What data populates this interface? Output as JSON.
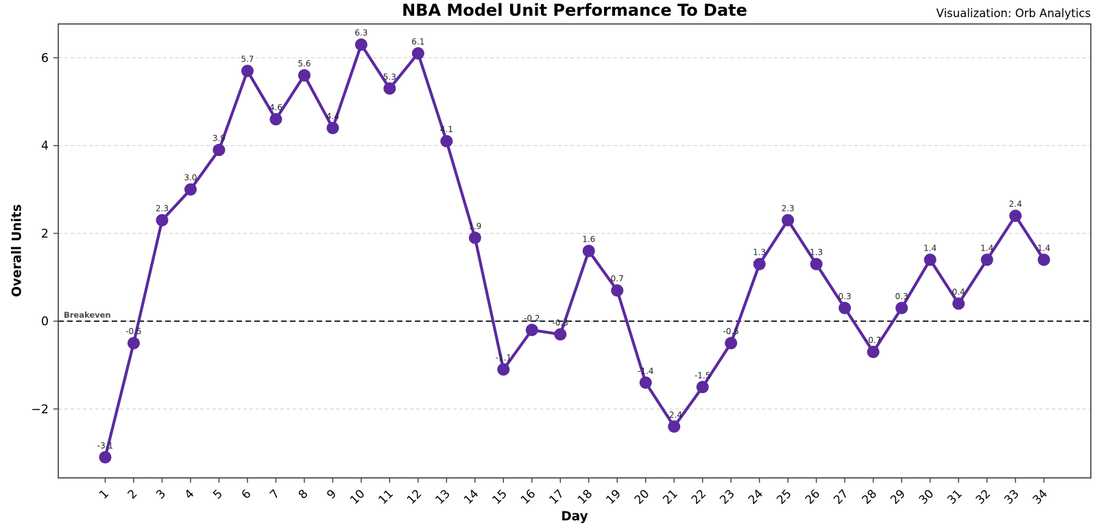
{
  "chart_data": {
    "type": "line",
    "title": "NBA Model Unit Performance To Date",
    "credit": "Visualization: Orb Analytics",
    "xlabel": "Day",
    "ylabel": "Overall Units",
    "x": [
      1,
      2,
      3,
      4,
      5,
      6,
      7,
      8,
      9,
      10,
      11,
      12,
      13,
      14,
      15,
      16,
      17,
      18,
      19,
      20,
      21,
      22,
      23,
      24,
      25,
      26,
      27,
      28,
      29,
      30,
      31,
      32,
      33,
      34
    ],
    "values": [
      -3.1,
      -0.5,
      2.3,
      3.0,
      3.9,
      5.7,
      4.6,
      5.6,
      4.4,
      6.3,
      5.3,
      6.1,
      4.1,
      1.9,
      -1.1,
      -0.2,
      -0.3,
      1.6,
      0.7,
      -1.4,
      -2.4,
      -1.5,
      -0.5,
      1.3,
      2.3,
      1.3,
      0.3,
      -0.7,
      0.3,
      1.4,
      0.4,
      1.4,
      2.4,
      1.4
    ],
    "y_ticks": [
      {
        "value": -2,
        "label": "−2"
      },
      {
        "value": 0,
        "label": "0"
      },
      {
        "value": 2,
        "label": "2"
      },
      {
        "value": 4,
        "label": "4"
      },
      {
        "value": 6,
        "label": "6"
      }
    ],
    "xlim": [
      -0.65,
      35.65
    ],
    "ylim": [
      -3.57,
      6.77
    ],
    "grid": true,
    "legend_position": "none",
    "breakeven": {
      "value": 0,
      "label": "Breakeven"
    },
    "colors": {
      "line": "#5b2aa0",
      "marker": "#5b2aa0",
      "grid_line": "#c9c9c9",
      "breakeven_line": "#1f1f1f",
      "breakeven_label": "#4a4a4a",
      "data_label": "#262626",
      "axis_text": "#000000",
      "spine": "#3a3a3a"
    }
  }
}
